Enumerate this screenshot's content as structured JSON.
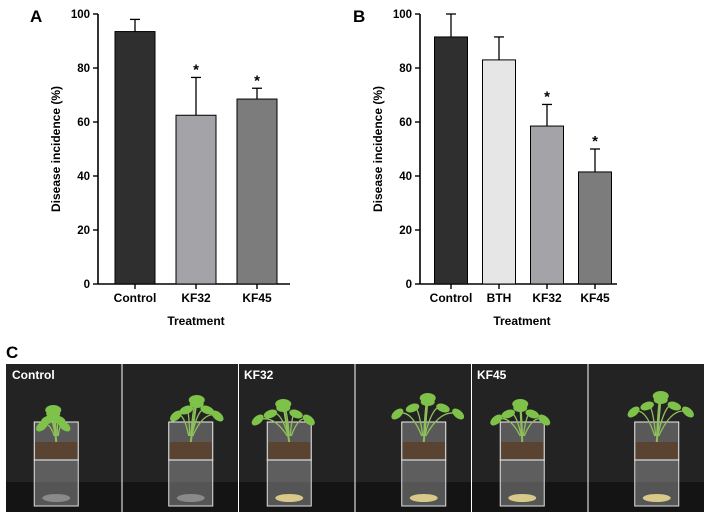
{
  "panels": {
    "A": "A",
    "B": "B",
    "C": "C"
  },
  "chart_data": [
    {
      "type": "bar",
      "panel": "A",
      "categories": [
        "Control",
        "KF32",
        "KF45"
      ],
      "values": [
        93.5,
        62.5,
        68.5
      ],
      "error": [
        4.5,
        14.0,
        4.0
      ],
      "significance": [
        "",
        "*",
        "*"
      ],
      "bar_colors": [
        "#2f2f2f",
        "#a3a3a8",
        "#7c7c7c"
      ],
      "xlabel": "Treatment",
      "ylabel": "Disease incidence  (%)",
      "ylim": [
        0,
        100
      ],
      "yticks": [
        0,
        20,
        40,
        60,
        80,
        100
      ],
      "grid": false
    },
    {
      "type": "bar",
      "panel": "B",
      "categories": [
        "Control",
        "BTH",
        "KF32",
        "KF45"
      ],
      "values": [
        91.5,
        83.0,
        58.5,
        41.5
      ],
      "error": [
        8.5,
        8.5,
        8.0,
        8.5
      ],
      "significance": [
        "",
        "",
        "*",
        "*"
      ],
      "bar_colors": [
        "#2f2f2f",
        "#e6e6e6",
        "#a3a3a8",
        "#7c7c7c"
      ],
      "xlabel": "Treatment",
      "ylabel": "Disease incidence  (%)",
      "ylim": [
        0,
        100
      ],
      "yticks": [
        0,
        20,
        40,
        60,
        80,
        100
      ],
      "grid": false
    }
  ],
  "photos": {
    "labels": [
      "Control",
      "KF32",
      "KF45"
    ],
    "background_color": "#232323",
    "soil_color": "#5a4330",
    "leaf_color": "#7fc24a"
  }
}
